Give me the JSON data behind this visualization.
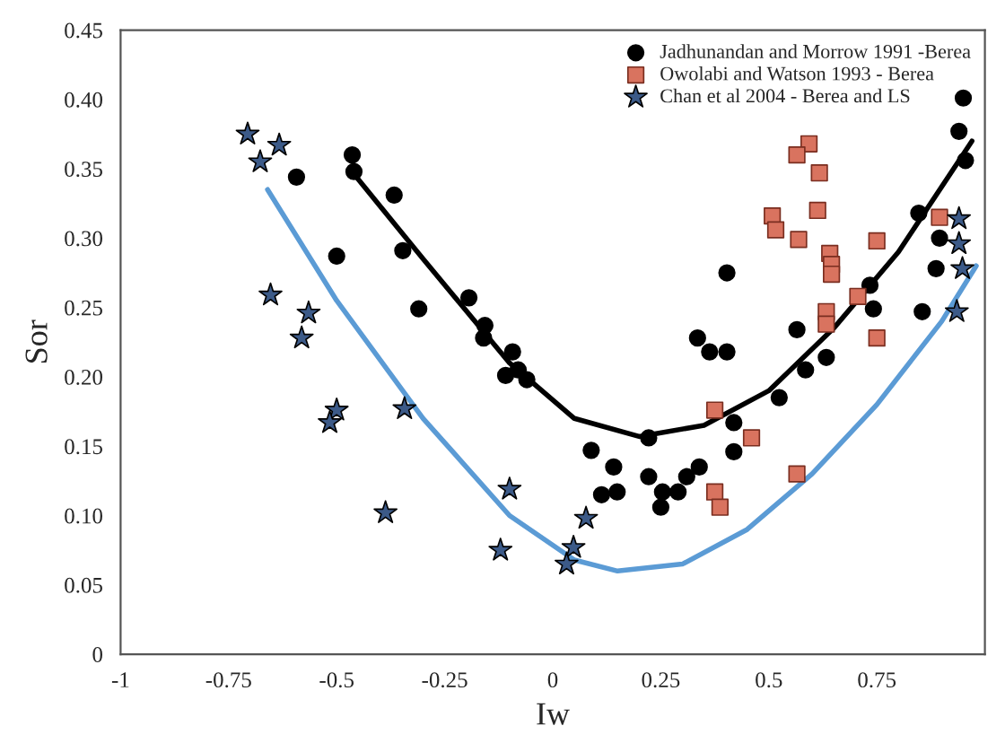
{
  "chart_data": {
    "type": "scatter",
    "xlabel": "Iw",
    "ylabel": "Sor",
    "xlim": [
      -1,
      1
    ],
    "ylim": [
      0,
      0.45
    ],
    "xticks": [
      {
        "value": -1,
        "label": "-1"
      },
      {
        "value": -0.75,
        "label": "-0.75"
      },
      {
        "value": -0.5,
        "label": "-0.5"
      },
      {
        "value": -0.25,
        "label": "-0.25"
      },
      0,
      0.25,
      0.5,
      0.75
    ],
    "yticks": [
      0,
      {
        "value": 0.05,
        "label": "0.05"
      },
      {
        "value": 0.1,
        "label": "0.10"
      },
      {
        "value": 0.15,
        "label": "0.15"
      },
      {
        "value": 0.2,
        "label": "0.20"
      },
      {
        "value": 0.25,
        "label": "0.25"
      },
      {
        "value": 0.3,
        "label": "0.30"
      },
      {
        "value": 0.35,
        "label": "0.35"
      },
      {
        "value": 0.4,
        "label": "0.40"
      },
      {
        "value": 0.45,
        "label": "0.45"
      }
    ],
    "grid": false,
    "legend": "top right",
    "series": [
      {
        "name": "Jadhunandan and Morrow 1991 -Berea",
        "marker": "circle",
        "color": "#000000",
        "x": [
          -0.593,
          -0.464,
          -0.46,
          -0.367,
          -0.5,
          -0.347,
          -0.31,
          -0.194,
          -0.157,
          -0.16,
          -0.093,
          -0.08,
          -0.06,
          -0.109,
          0.403,
          0.335,
          0.363,
          0.403,
          0.565,
          0.734,
          0.742,
          0.847,
          0.855,
          0.887,
          0.895,
          0.94,
          0.95,
          0.955,
          null,
          0.633,
          0.585,
          0.222,
          0.419,
          0.524,
          0.419,
          0.089,
          0.141,
          0.113,
          0.149,
          0.222,
          0.254,
          0.25,
          0.29,
          0.31,
          0.339
        ],
        "values": [
          0.344,
          0.36,
          0.348,
          0.331,
          0.287,
          0.291,
          0.249,
          0.257,
          0.237,
          0.228,
          0.218,
          0.205,
          0.198,
          0.201,
          0.275,
          0.228,
          0.218,
          0.218,
          0.234,
          0.266,
          0.249,
          0.318,
          0.247,
          0.278,
          0.3,
          0.377,
          0.401,
          0.356,
          null,
          0.214,
          0.205,
          0.156,
          0.167,
          0.185,
          0.146,
          0.147,
          0.135,
          0.115,
          0.117,
          0.128,
          0.117,
          0.106,
          0.117,
          0.128,
          0.135
        ]
      },
      {
        "name": "Owolabi and Watson 1993 - Berea",
        "marker": "square",
        "color": "#d9735f",
        "x": [
          0.593,
          0.565,
          0.617,
          0.613,
          0.508,
          0.516,
          0.569,
          0.641,
          0.645,
          0.645,
          0.75,
          0.706,
          0.633,
          0.633,
          0.75,
          0.895,
          0.375,
          0.46,
          0.375,
          0.387,
          0.565
        ],
        "values": [
          0.368,
          0.36,
          0.347,
          0.32,
          0.316,
          0.306,
          0.299,
          0.289,
          0.281,
          0.274,
          0.298,
          0.258,
          0.247,
          0.238,
          0.228,
          0.315,
          0.176,
          0.156,
          0.117,
          0.106,
          0.13
        ]
      },
      {
        "name": "Chan et al 2004 - Berea and LS",
        "marker": "star",
        "color": "#3c5a88",
        "x": [
          -0.706,
          -0.677,
          -0.633,
          -0.653,
          -0.565,
          -0.581,
          -0.5,
          -0.516,
          -0.343,
          -0.387,
          -0.121,
          -0.1,
          0.077,
          0.048,
          0.032,
          0.94,
          0.94,
          0.948,
          0.935
        ],
        "values": [
          0.375,
          0.355,
          0.367,
          0.259,
          0.246,
          0.228,
          0.176,
          0.167,
          0.177,
          0.102,
          0.075,
          0.119,
          0.098,
          0.077,
          0.065,
          0.314,
          0.296,
          0.278,
          0.247
        ]
      },
      {
        "type": "line",
        "marker": "none",
        "color": "#000000",
        "x": [
          -0.47,
          -0.3,
          -0.1,
          0.05,
          0.2,
          0.35,
          0.5,
          0.65,
          0.8,
          0.97
        ],
        "values": [
          0.35,
          0.285,
          0.21,
          0.17,
          0.157,
          0.165,
          0.19,
          0.235,
          0.29,
          0.37
        ]
      },
      {
        "type": "line",
        "marker": "none",
        "color": "#5b9bd5",
        "x": [
          -0.66,
          -0.5,
          -0.3,
          -0.1,
          0.05,
          0.15,
          0.3,
          0.45,
          0.6,
          0.75,
          0.9,
          0.98
        ],
        "values": [
          0.335,
          0.255,
          0.17,
          0.1,
          0.068,
          0.06,
          0.065,
          0.09,
          0.13,
          0.18,
          0.24,
          0.28
        ]
      }
    ]
  }
}
